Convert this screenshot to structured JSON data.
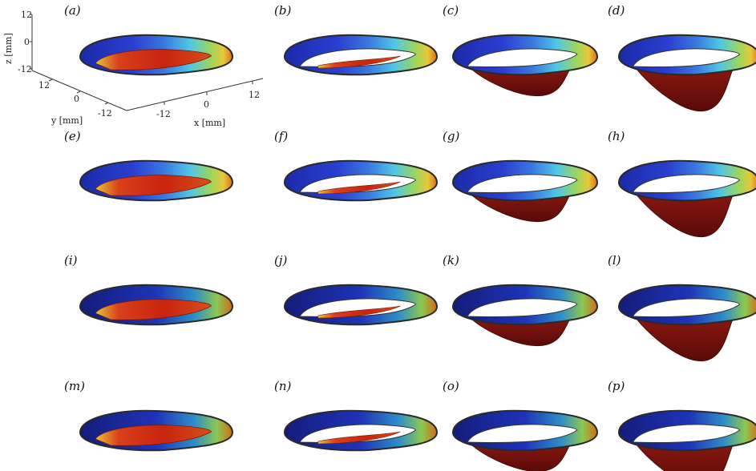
{
  "figure": {
    "panels": [
      {
        "label": "(a)",
        "row": 0,
        "col": 0,
        "opening": "small"
      },
      {
        "label": "(b)",
        "row": 0,
        "col": 1,
        "opening": "medium"
      },
      {
        "label": "(c)",
        "row": 0,
        "col": 2,
        "opening": "large"
      },
      {
        "label": "(d)",
        "row": 0,
        "col": 3,
        "opening": "full"
      },
      {
        "label": "(e)",
        "row": 1,
        "col": 0,
        "opening": "small"
      },
      {
        "label": "(f)",
        "row": 1,
        "col": 1,
        "opening": "medium"
      },
      {
        "label": "(g)",
        "row": 1,
        "col": 2,
        "opening": "large"
      },
      {
        "label": "(h)",
        "row": 1,
        "col": 3,
        "opening": "full"
      },
      {
        "label": "(i)",
        "row": 2,
        "col": 0,
        "opening": "small"
      },
      {
        "label": "(j)",
        "row": 2,
        "col": 1,
        "opening": "medium"
      },
      {
        "label": "(k)",
        "row": 2,
        "col": 2,
        "opening": "large"
      },
      {
        "label": "(l)",
        "row": 2,
        "col": 3,
        "opening": "full"
      },
      {
        "label": "(m)",
        "row": 3,
        "col": 0,
        "opening": "small"
      },
      {
        "label": "(n)",
        "row": 3,
        "col": 1,
        "opening": "medium"
      },
      {
        "label": "(o)",
        "row": 3,
        "col": 2,
        "opening": "large"
      },
      {
        "label": "(p)",
        "row": 3,
        "col": 3,
        "opening": "full"
      }
    ],
    "axes": {
      "z_label": "z [mm]",
      "y_label": "y [mm]",
      "x_label": "x [mm]",
      "z_ticks": [
        "12",
        "0",
        "-12"
      ],
      "y_ticks": [
        "12",
        "0",
        "-12"
      ],
      "x_ticks": [
        "-12",
        "0",
        "12"
      ]
    },
    "colors": {
      "blue": "#1c2fb0",
      "cyan": "#4fc6e6",
      "yellow": "#e8d23a",
      "orange": "#e0781a",
      "red": "#c8240e",
      "darkred": "#6a0c0a",
      "outline": "#2a2a2a"
    }
  }
}
